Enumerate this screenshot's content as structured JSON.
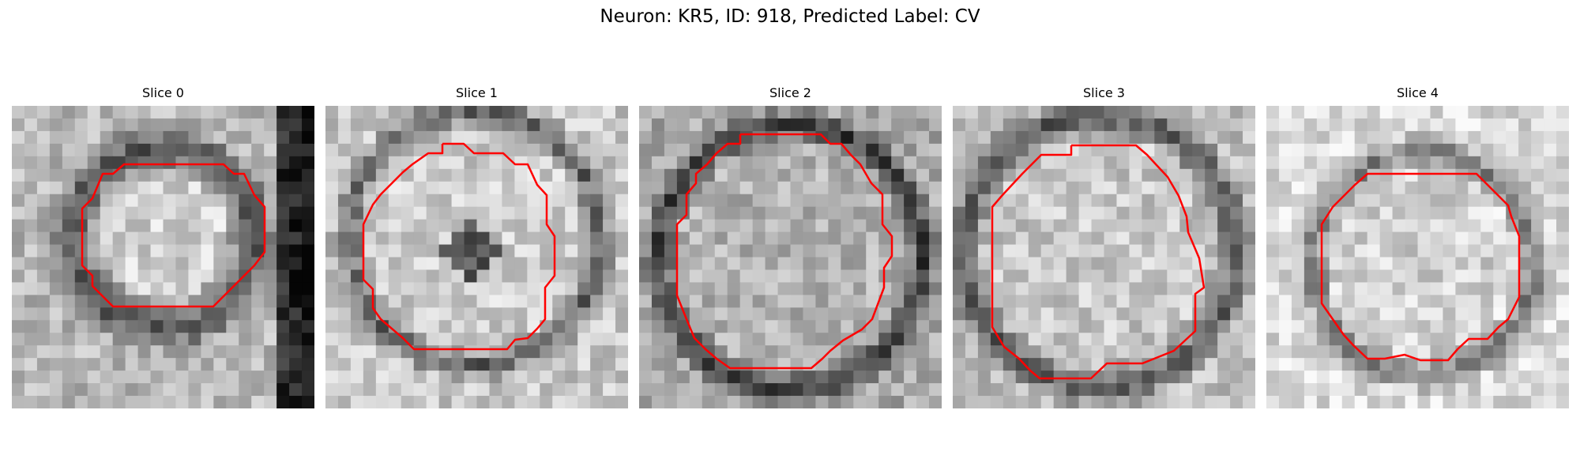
{
  "figure": {
    "title": "Neuron: KR5, ID: 918, Predicted Label: CV"
  },
  "panels": [
    {
      "title": "Slice 0"
    },
    {
      "title": "Slice 1"
    },
    {
      "title": "Slice 2"
    },
    {
      "title": "Slice 3"
    },
    {
      "title": "Slice 4"
    }
  ],
  "colors": {
    "contour": "#ff0000",
    "background": "#ffffff"
  }
}
